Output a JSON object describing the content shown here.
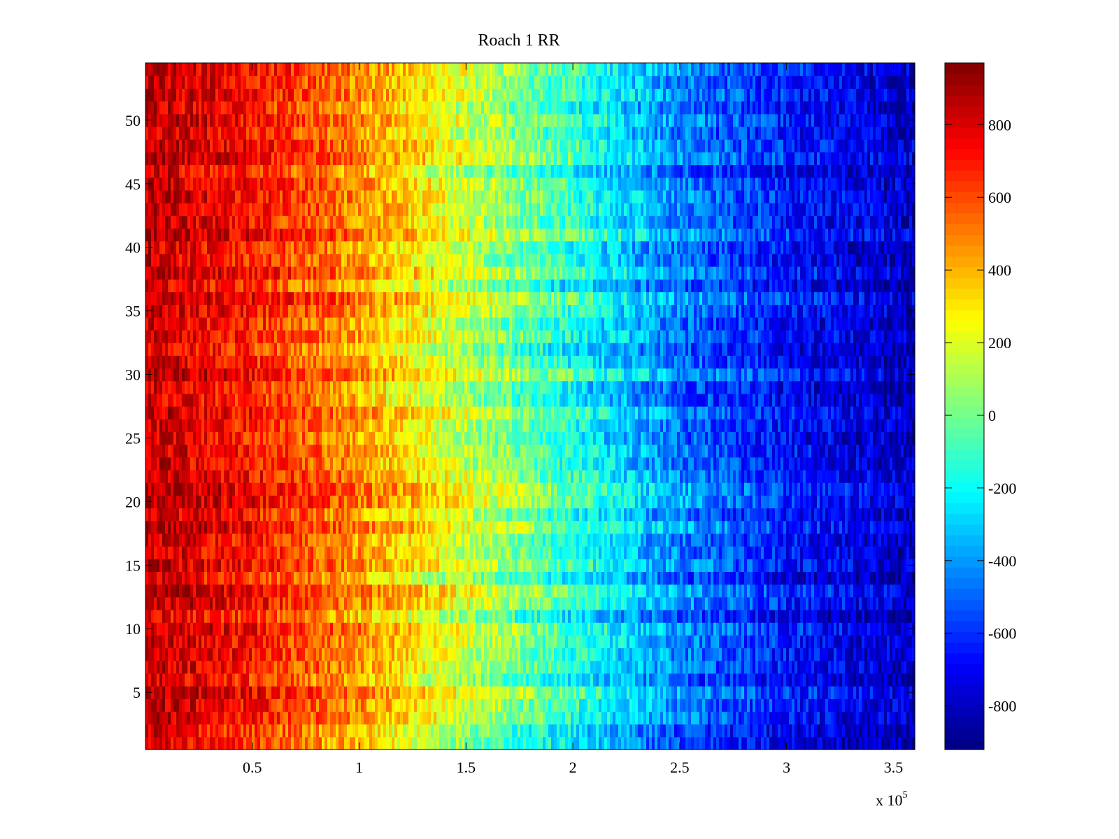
{
  "chart_data": {
    "type": "heatmap",
    "title": "Roach 1 RR",
    "xlabel": "",
    "ylabel": "",
    "x_multiplier_label": "x 10",
    "x_multiplier_exponent": "5",
    "xlim": [
      0,
      3.6
    ],
    "ylim": [
      0.5,
      54.5
    ],
    "x_ticks": [
      {
        "value": 0.5,
        "label": "0.5"
      },
      {
        "value": 1,
        "label": "1"
      },
      {
        "value": 1.5,
        "label": "1.5"
      },
      {
        "value": 2,
        "label": "2"
      },
      {
        "value": 2.5,
        "label": "2.5"
      },
      {
        "value": 3,
        "label": "3"
      },
      {
        "value": 3.5,
        "label": "3.5"
      }
    ],
    "y_ticks": [
      {
        "value": 5,
        "label": "5"
      },
      {
        "value": 10,
        "label": "10"
      },
      {
        "value": 15,
        "label": "15"
      },
      {
        "value": 20,
        "label": "20"
      },
      {
        "value": 25,
        "label": "25"
      },
      {
        "value": 30,
        "label": "30"
      },
      {
        "value": 35,
        "label": "35"
      },
      {
        "value": 40,
        "label": "40"
      },
      {
        "value": 45,
        "label": "45"
      },
      {
        "value": 50,
        "label": "50"
      }
    ],
    "rows": 54,
    "colorbar": {
      "colormap": "jet",
      "min": -920,
      "max": 970,
      "ticks": [
        {
          "value": 800,
          "label": "800"
        },
        {
          "value": 600,
          "label": "600"
        },
        {
          "value": 400,
          "label": "400"
        },
        {
          "value": 200,
          "label": "200"
        },
        {
          "value": 0,
          "label": "0"
        },
        {
          "value": -200,
          "label": "-200"
        },
        {
          "value": -400,
          "label": "-400"
        },
        {
          "value": -600,
          "label": "-600"
        },
        {
          "value": -800,
          "label": "-800"
        }
      ]
    },
    "trend_profile": [
      {
        "x": 0.0,
        "value": 850
      },
      {
        "x": 0.5,
        "value": 700
      },
      {
        "x": 1.0,
        "value": 450
      },
      {
        "x": 1.5,
        "value": 150
      },
      {
        "x": 2.0,
        "value": -150
      },
      {
        "x": 2.5,
        "value": -450
      },
      {
        "x": 3.0,
        "value": -650
      },
      {
        "x": 3.6,
        "value": -800
      }
    ],
    "grid": false,
    "legend": "colorbar-right"
  }
}
